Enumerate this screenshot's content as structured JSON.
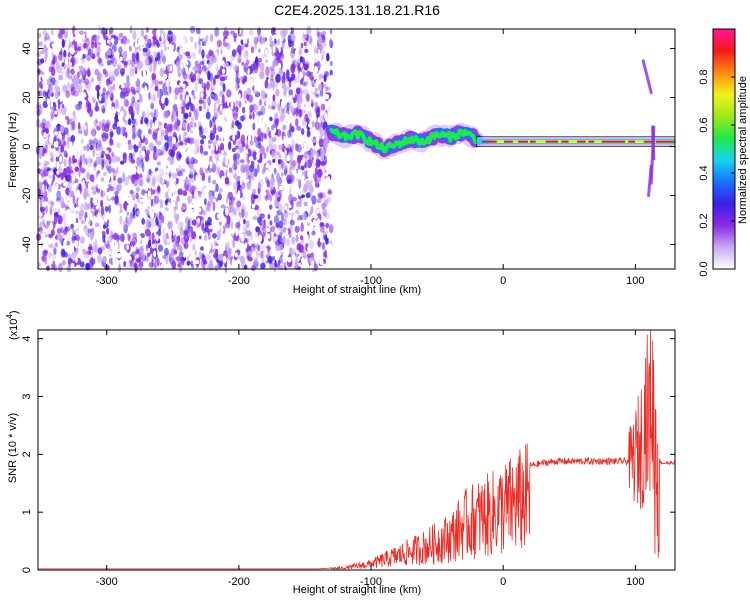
{
  "title": "C2E4.2025.131.18.21.R16",
  "colors": {
    "snr_line": "#ee2a24",
    "purple_noise": "#8a2be2",
    "signal_core": "#e8144a",
    "colormap": [
      "#ffffff",
      "#c9a8f2",
      "#8a2be2",
      "#3a1fe8",
      "#1a73ff",
      "#16d4ee",
      "#21e84a",
      "#9ee81a",
      "#f2f21a",
      "#ff8a12",
      "#f51a1a",
      "#ff1499"
    ]
  },
  "chart_data": [
    {
      "type": "heatmap",
      "xlabel": "Height of straight line (km)",
      "ylabel": "Frequency (Hz)",
      "xlim": [
        -352,
        130
      ],
      "ylim": [
        -50,
        48
      ],
      "x_ticks": [
        -300,
        -200,
        -100,
        0,
        100
      ],
      "y_ticks": [
        -40,
        -20,
        0,
        20,
        40
      ],
      "colorbar": {
        "label": "Normalized spectral amplitude",
        "range": [
          0,
          1
        ],
        "ticks": [
          0.0,
          0.2,
          0.4,
          0.6,
          0.8
        ]
      },
      "regions": {
        "noise_x_range": [
          -352,
          -130
        ],
        "noise_level": 0.25,
        "signal_line_x_range": [
          -130,
          130
        ],
        "signal_level": 1.0
      },
      "signal_track": {
        "x": [
          -130,
          -120,
          -110,
          -100,
          -90,
          -80,
          -70,
          -60,
          -50,
          -40,
          -30,
          -20,
          0,
          20,
          40,
          60,
          80,
          95,
          105,
          110,
          115,
          130
        ],
        "freq": [
          6,
          4,
          5,
          2,
          -1,
          1,
          3,
          2,
          5,
          4,
          6,
          3,
          2,
          2,
          2,
          2,
          2,
          2,
          2,
          2,
          1,
          1
        ]
      },
      "spike_near_x": 108
    },
    {
      "type": "line",
      "xlabel": "Height of straight line (km)",
      "ylabel": "SNR (10 * v/v)",
      "y_multiplier_label": "(x10",
      "y_multiplier_exp": "4",
      "y_multiplier_close": ")",
      "xlim": [
        -352,
        130
      ],
      "ylim": [
        0,
        4.15
      ],
      "x_ticks": [
        -300,
        -200,
        -100,
        0,
        100
      ],
      "y_ticks": [
        0,
        1,
        2,
        3,
        4
      ],
      "series_envelope": {
        "x": [
          -352,
          -140,
          -120,
          -100,
          -80,
          -60,
          -40,
          -30,
          -20,
          -10,
          0,
          10,
          20,
          30,
          40,
          60,
          80,
          95,
          100,
          105,
          108,
          110,
          112,
          115,
          120,
          130
        ],
        "y": [
          0.02,
          0.02,
          0.05,
          0.15,
          0.35,
          0.55,
          0.8,
          1.1,
          1.25,
          1.35,
          1.5,
          1.65,
          1.8,
          1.85,
          1.88,
          1.88,
          1.88,
          1.88,
          1.95,
          2.2,
          2.8,
          2.5,
          3.2,
          2.0,
          1.85,
          1.85
        ]
      }
    }
  ]
}
